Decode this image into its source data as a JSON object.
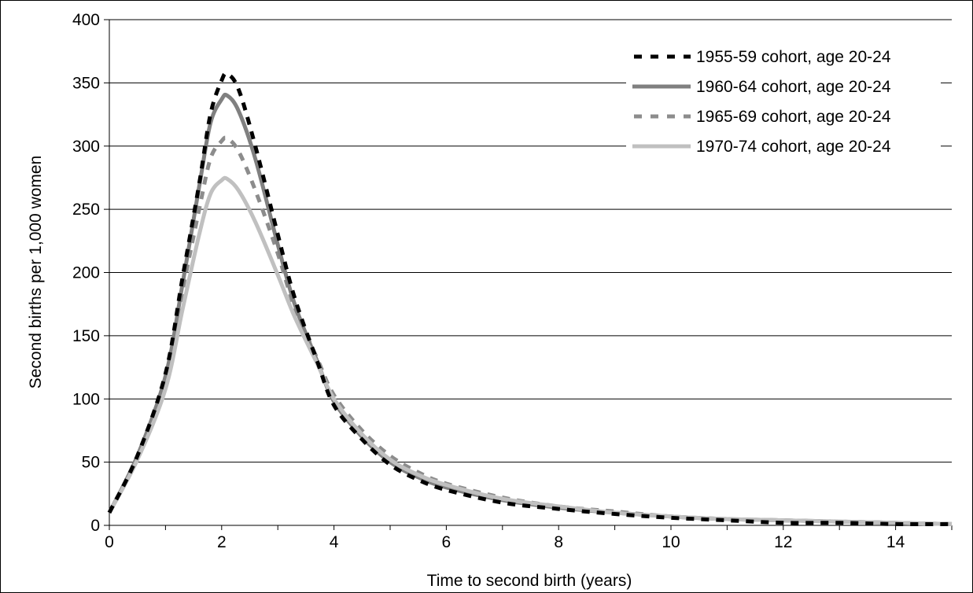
{
  "chart_data": {
    "type": "line",
    "title": "",
    "xlabel": "Time to second birth (years)",
    "ylabel": "Second births per 1,000 women",
    "xlim": [
      0,
      15
    ],
    "ylim": [
      0,
      400
    ],
    "x_ticks": [
      0,
      2,
      4,
      6,
      8,
      10,
      12,
      14
    ],
    "y_ticks": [
      0,
      50,
      100,
      150,
      200,
      250,
      300,
      350,
      400
    ],
    "grid": "horizontal",
    "legend_position": "top-right",
    "series": [
      {
        "name": "1955-59 cohort, age 20-24",
        "color": "#000000",
        "dash": "dash",
        "x": [
          0,
          0.5,
          1.0,
          1.3,
          1.6,
          1.8,
          2.0,
          2.1,
          2.3,
          2.6,
          3.0,
          3.3,
          3.7,
          4.0,
          4.5,
          5.0,
          5.5,
          6.0,
          7.0,
          8.0,
          9.0,
          10.0,
          11.0,
          12.0,
          13.0,
          14.0,
          15.0
        ],
        "y": [
          10,
          55,
          120,
          195,
          270,
          325,
          352,
          357,
          345,
          300,
          230,
          180,
          130,
          95,
          68,
          48,
          36,
          28,
          18,
          13,
          9,
          6,
          4,
          2,
          2,
          1,
          1
        ]
      },
      {
        "name": "1960-64 cohort, age 20-24",
        "color": "#808080",
        "dash": "solid",
        "x": [
          0,
          0.5,
          1.0,
          1.3,
          1.6,
          1.8,
          2.0,
          2.1,
          2.3,
          2.6,
          3.0,
          3.3,
          3.7,
          4.0,
          4.5,
          5.0,
          5.5,
          6.0,
          7.0,
          8.0,
          9.0,
          10.0,
          11.0,
          12.0,
          13.0,
          14.0,
          15.0
        ],
        "y": [
          10,
          55,
          118,
          190,
          268,
          318,
          337,
          340,
          328,
          290,
          222,
          175,
          130,
          98,
          70,
          50,
          38,
          30,
          20,
          14,
          10,
          7,
          5,
          4,
          3,
          2,
          1
        ]
      },
      {
        "name": "1965-69 cohort, age 20-24",
        "color": "#8c8c8c",
        "dash": "dash",
        "x": [
          0,
          0.5,
          1.0,
          1.3,
          1.6,
          1.8,
          2.0,
          2.1,
          2.3,
          2.6,
          3.0,
          3.3,
          3.7,
          4.0,
          4.5,
          5.0,
          5.5,
          6.0,
          7.0,
          8.0,
          9.0,
          10.0,
          11.0,
          12.0,
          13.0,
          14.0,
          15.0
        ],
        "y": [
          10,
          55,
          115,
          185,
          250,
          290,
          304,
          306,
          296,
          265,
          215,
          172,
          132,
          103,
          75,
          55,
          42,
          33,
          22,
          15,
          11,
          7,
          5,
          4,
          3,
          2,
          1
        ]
      },
      {
        "name": "1970-74 cohort, age 20-24",
        "color": "#c0c0c0",
        "dash": "solid",
        "x": [
          0,
          0.5,
          1.0,
          1.3,
          1.6,
          1.8,
          2.0,
          2.1,
          2.3,
          2.6,
          3.0,
          3.3,
          3.7,
          4.0,
          4.5,
          5.0,
          5.5,
          6.0,
          7.0,
          8.0,
          9.0,
          10.0,
          11.0,
          12.0,
          13.0,
          14.0,
          15.0
        ],
        "y": [
          10,
          52,
          108,
          170,
          230,
          262,
          273,
          274,
          265,
          240,
          198,
          165,
          128,
          100,
          72,
          52,
          40,
          32,
          21,
          15,
          10,
          7,
          5,
          4,
          3,
          2,
          1
        ]
      }
    ]
  }
}
